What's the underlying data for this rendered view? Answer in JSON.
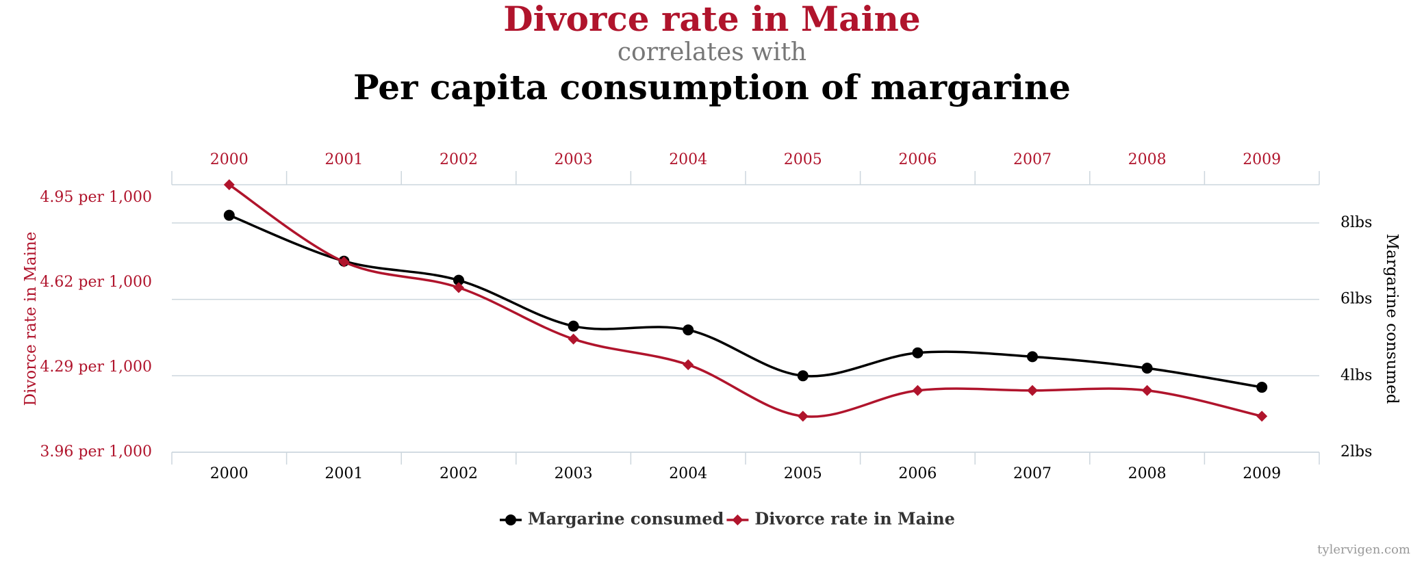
{
  "chart_data": {
    "type": "line",
    "title": "Divorce rate in Maine",
    "subtitle": "correlates with",
    "title2": "Per capita consumption of margarine",
    "source": "tylervigen.com",
    "categories": [
      "2000",
      "2001",
      "2002",
      "2003",
      "2004",
      "2005",
      "2006",
      "2007",
      "2008",
      "2009"
    ],
    "ylabel": "Divorce rate in Maine",
    "y2label": "Margarine consumed",
    "ylim": [
      3.96,
      5.0
    ],
    "yticks": [
      {
        "value": 3.96,
        "label": "3.96 per 1,000"
      },
      {
        "value": 4.29,
        "label": "4.29 per 1,000"
      },
      {
        "value": 4.62,
        "label": "4.62 per 1,000"
      },
      {
        "value": 4.95,
        "label": "4.95 per 1,000"
      }
    ],
    "y2lim": [
      2,
      9
    ],
    "y2ticks": [
      {
        "value": 2,
        "label": "2lbs"
      },
      {
        "value": 4,
        "label": "4lbs"
      },
      {
        "value": 6,
        "label": "6lbs"
      },
      {
        "value": 8,
        "label": "8lbs"
      }
    ],
    "grid": "y2",
    "legend": "bottom",
    "series": [
      {
        "name": "Margarine consumed",
        "color": "#000000",
        "axis": "y2",
        "marker": "circle",
        "values": [
          8.2,
          7.0,
          6.5,
          5.3,
          5.2,
          4.0,
          4.6,
          4.5,
          4.2,
          3.7
        ]
      },
      {
        "name": "Divorce rate in Maine",
        "color": "#b0142c",
        "marker": "diamond",
        "values": [
          5.0,
          4.7,
          4.6,
          4.4,
          4.3,
          4.1,
          4.2,
          4.2,
          4.2,
          4.1
        ]
      }
    ]
  }
}
